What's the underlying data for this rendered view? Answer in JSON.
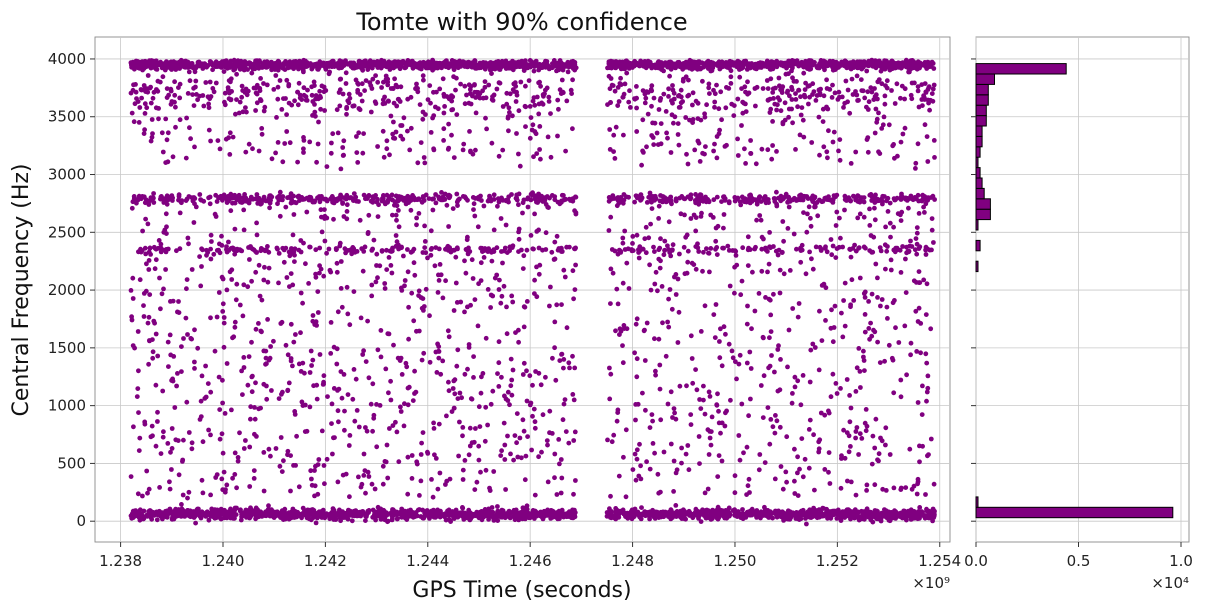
{
  "chart_data": [
    {
      "type": "scatter",
      "title": "Tomte with 90% confidence",
      "xlabel": "GPS Time (seconds)",
      "ylabel": "Central Frequency (Hz)",
      "x_scale_label": "×10⁹",
      "xlim": [
        1.2375,
        1.2542
      ],
      "ylim": [
        -180,
        4190
      ],
      "x_ticks": [
        1.238,
        1.24,
        1.242,
        1.244,
        1.246,
        1.248,
        1.25,
        1.252,
        1.254
      ],
      "x_tick_labels": [
        "1.238",
        "1.240",
        "1.242",
        "1.244",
        "1.246",
        "1.248",
        "1.250",
        "1.252",
        "1.254"
      ],
      "y_ticks": [
        0,
        500,
        1000,
        1500,
        2000,
        2500,
        3000,
        3500,
        4000
      ],
      "y_tick_labels": [
        "0",
        "500",
        "1000",
        "1500",
        "2000",
        "2500",
        "3000",
        "3500",
        "4000"
      ],
      "grid": true,
      "marker_color": "#800080",
      "x_range_segments": [
        [
          1.2382,
          1.2469
        ],
        [
          1.2475,
          1.2539
        ]
      ],
      "frequency_bands": [
        {
          "freq": 60,
          "spread": 45,
          "density": "very high"
        },
        {
          "freq": 2790,
          "spread": 40,
          "density": "high"
        },
        {
          "freq": 3950,
          "spread": 40,
          "density": "very high"
        },
        {
          "freq": 3700,
          "spread": 200,
          "density": "high"
        },
        {
          "freq": 3300,
          "spread": 250,
          "density": "medium"
        },
        {
          "freq": 2350,
          "spread": 30,
          "density": "medium"
        },
        {
          "freq": 1500,
          "spread": 1300,
          "density": "low"
        }
      ]
    },
    {
      "type": "bar",
      "orientation": "horizontal",
      "x_scale_label": "×10⁴",
      "xlim": [
        0,
        1.0
      ],
      "x_ticks": [
        0.0,
        0.5,
        1.0
      ],
      "x_tick_labels": [
        "0.0",
        "0.5",
        "1.0"
      ],
      "bar_color": "#800080",
      "bin_width": 90,
      "bins": [
        {
          "freq_from": 30,
          "value": 0.96
        },
        {
          "freq_from": 120,
          "value": 0.01
        },
        {
          "freq_from": 2160,
          "value": 0.01
        },
        {
          "freq_from": 2340,
          "value": 0.02
        },
        {
          "freq_from": 2520,
          "value": 0.01
        },
        {
          "freq_from": 2610,
          "value": 0.07
        },
        {
          "freq_from": 2700,
          "value": 0.07
        },
        {
          "freq_from": 2790,
          "value": 0.04
        },
        {
          "freq_from": 2880,
          "value": 0.03
        },
        {
          "freq_from": 2970,
          "value": 0.02
        },
        {
          "freq_from": 3060,
          "value": 0.01
        },
        {
          "freq_from": 3150,
          "value": 0.02
        },
        {
          "freq_from": 3240,
          "value": 0.03
        },
        {
          "freq_from": 3330,
          "value": 0.03
        },
        {
          "freq_from": 3420,
          "value": 0.05
        },
        {
          "freq_from": 3510,
          "value": 0.05
        },
        {
          "freq_from": 3600,
          "value": 0.06
        },
        {
          "freq_from": 3690,
          "value": 0.06
        },
        {
          "freq_from": 3780,
          "value": 0.09
        },
        {
          "freq_from": 3870,
          "value": 0.44
        }
      ]
    }
  ]
}
